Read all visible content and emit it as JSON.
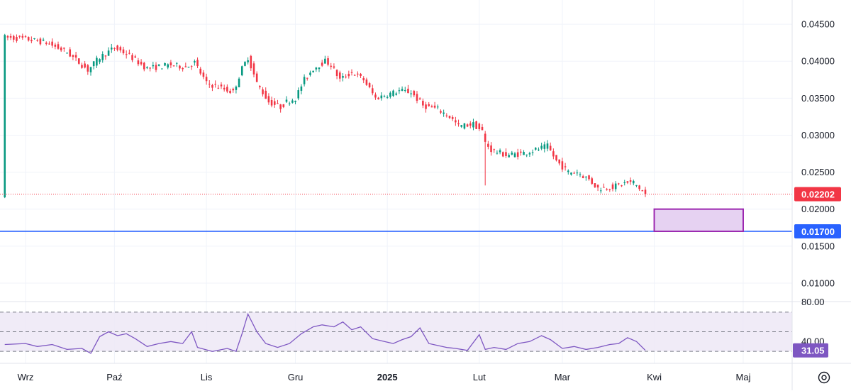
{
  "chart_data": [
    {
      "type": "candlestick",
      "title": "",
      "x_ticks": [
        {
          "label": "Wrz",
          "date": "2024-09-01"
        },
        {
          "label": "Paź",
          "date": "2024-10-01"
        },
        {
          "label": "Lis",
          "date": "2024-11-01"
        },
        {
          "label": "Gru",
          "date": "2024-12-01"
        },
        {
          "label": "2025",
          "date": "2025-01-01",
          "bold": true
        },
        {
          "label": "Lut",
          "date": "2025-02-01"
        },
        {
          "label": "Mar",
          "date": "2025-03-01"
        },
        {
          "label": "Kwi",
          "date": "2025-04-01"
        },
        {
          "label": "Maj",
          "date": "2025-05-01"
        }
      ],
      "y_ticks": [
        "0.04500",
        "0.04000",
        "0.03500",
        "0.03000",
        "0.02500",
        "0.02000",
        "0.01500",
        "0.01000"
      ],
      "ylim": [
        0.0075,
        0.0475
      ],
      "price_path": [
        [
          "2024-08-25",
          0.0432
        ],
        [
          "2024-09-01",
          0.043
        ],
        [
          "2024-09-08",
          0.0425
        ],
        [
          "2024-09-15",
          0.0412
        ],
        [
          "2024-09-22",
          0.0388
        ],
        [
          "2024-09-26",
          0.0405
        ],
        [
          "2024-10-01",
          0.0418
        ],
        [
          "2024-10-05",
          0.041
        ],
        [
          "2024-10-12",
          0.039
        ],
        [
          "2024-10-20",
          0.0395
        ],
        [
          "2024-10-25",
          0.0392
        ],
        [
          "2024-10-28",
          0.0398
        ],
        [
          "2024-11-01",
          0.037
        ],
        [
          "2024-11-05",
          0.0365
        ],
        [
          "2024-11-10",
          0.0358
        ],
        [
          "2024-11-13",
          0.039
        ],
        [
          "2024-11-15",
          0.0405
        ],
        [
          "2024-11-18",
          0.037
        ],
        [
          "2024-11-22",
          0.0345
        ],
        [
          "2024-11-26",
          0.0338
        ],
        [
          "2024-11-28",
          0.0345
        ],
        [
          "2024-12-01",
          0.035
        ],
        [
          "2024-12-04",
          0.0375
        ],
        [
          "2024-12-07",
          0.039
        ],
        [
          "2024-12-11",
          0.04
        ],
        [
          "2024-12-13",
          0.0395
        ],
        [
          "2024-12-16",
          0.0375
        ],
        [
          "2024-12-20",
          0.0385
        ],
        [
          "2024-12-24",
          0.0375
        ],
        [
          "2024-12-28",
          0.035
        ],
        [
          "2025-01-01",
          0.0355
        ],
        [
          "2025-01-05",
          0.036
        ],
        [
          "2025-01-09",
          0.0358
        ],
        [
          "2025-01-13",
          0.034
        ],
        [
          "2025-01-18",
          0.0335
        ],
        [
          "2025-01-22",
          0.0325
        ],
        [
          "2025-01-25",
          0.0312
        ],
        [
          "2025-01-30",
          0.0315
        ],
        [
          "2025-02-02",
          0.0305
        ],
        [
          "2025-02-03",
          0.029
        ],
        [
          "2025-02-05",
          0.028
        ],
        [
          "2025-02-10",
          0.0273
        ],
        [
          "2025-02-15",
          0.0275
        ],
        [
          "2025-02-20",
          0.028
        ],
        [
          "2025-02-24",
          0.0285
        ],
        [
          "2025-02-27",
          0.0265
        ],
        [
          "2025-03-03",
          0.025
        ],
        [
          "2025-03-06",
          0.025
        ],
        [
          "2025-03-10",
          0.024
        ],
        [
          "2025-03-13",
          0.0228
        ],
        [
          "2025-03-18",
          0.023
        ],
        [
          "2025-03-22",
          0.0235
        ],
        [
          "2025-03-25",
          0.0236
        ],
        [
          "2025-03-27",
          0.0228
        ],
        [
          "2025-03-29",
          0.022
        ]
      ],
      "dips": [
        {
          "date": "2025-02-03",
          "low": 0.0232
        }
      ],
      "lines": [
        {
          "name": "",
          "value": "0.02202",
          "style": "dotted",
          "color": "#f23645",
          "label_bg": "#f23645"
        },
        {
          "name": "",
          "value": "0.01700",
          "style": "solid",
          "color": "#2962ff",
          "label_bg": "#2962ff"
        }
      ],
      "rectangle": {
        "date_start": "2025-04-01",
        "date_end": "2025-05-01",
        "y_top": 0.02,
        "y_bottom": 0.017,
        "fill": "#e6d2f2",
        "stroke": "#9c27b0"
      },
      "colors": {
        "up": "#089981",
        "down": "#f23645",
        "grid": "#f0f3fa",
        "text": "#131722"
      }
    },
    {
      "type": "line",
      "title": "",
      "y_ticks": [
        "80.00",
        "40.00"
      ],
      "bands": [
        70,
        50,
        30
      ],
      "ylim": [
        20,
        80
      ],
      "last_value": "31.05",
      "line_color": "#7e57c2",
      "band_fill": "#ede7f6",
      "values": [
        [
          "2024-08-25",
          37
        ],
        [
          "2024-09-01",
          38
        ],
        [
          "2024-09-05",
          35
        ],
        [
          "2024-09-10",
          37
        ],
        [
          "2024-09-15",
          32
        ],
        [
          "2024-09-20",
          33
        ],
        [
          "2024-09-23",
          28
        ],
        [
          "2024-09-26",
          45
        ],
        [
          "2024-09-29",
          50
        ],
        [
          "2024-10-02",
          46
        ],
        [
          "2024-10-05",
          48
        ],
        [
          "2024-10-08",
          43
        ],
        [
          "2024-10-12",
          35
        ],
        [
          "2024-10-16",
          38
        ],
        [
          "2024-10-20",
          40
        ],
        [
          "2024-10-24",
          38
        ],
        [
          "2024-10-27",
          50
        ],
        [
          "2024-10-29",
          34
        ],
        [
          "2024-11-03",
          30
        ],
        [
          "2024-11-08",
          33
        ],
        [
          "2024-11-11",
          30
        ],
        [
          "2024-11-13",
          48
        ],
        [
          "2024-11-15",
          68
        ],
        [
          "2024-11-18",
          50
        ],
        [
          "2024-11-21",
          38
        ],
        [
          "2024-11-25",
          34
        ],
        [
          "2024-11-29",
          38
        ],
        [
          "2024-12-03",
          48
        ],
        [
          "2024-12-07",
          55
        ],
        [
          "2024-12-10",
          57
        ],
        [
          "2024-12-14",
          55
        ],
        [
          "2024-12-17",
          60
        ],
        [
          "2024-12-20",
          52
        ],
        [
          "2024-12-23",
          55
        ],
        [
          "2024-12-27",
          43
        ],
        [
          "2024-12-31",
          40
        ],
        [
          "2025-01-03",
          38
        ],
        [
          "2025-01-06",
          42
        ],
        [
          "2025-01-09",
          45
        ],
        [
          "2025-01-12",
          54
        ],
        [
          "2025-01-15",
          38
        ],
        [
          "2025-01-18",
          36
        ],
        [
          "2025-01-21",
          34
        ],
        [
          "2025-01-24",
          33
        ],
        [
          "2025-01-28",
          31
        ],
        [
          "2025-02-01",
          47
        ],
        [
          "2025-02-03",
          32
        ],
        [
          "2025-02-06",
          34
        ],
        [
          "2025-02-10",
          32
        ],
        [
          "2025-02-14",
          38
        ],
        [
          "2025-02-18",
          40
        ],
        [
          "2025-02-22",
          46
        ],
        [
          "2025-02-25",
          42
        ],
        [
          "2025-03-01",
          33
        ],
        [
          "2025-03-05",
          35
        ],
        [
          "2025-03-09",
          32
        ],
        [
          "2025-03-13",
          34
        ],
        [
          "2025-03-17",
          37
        ],
        [
          "2025-03-20",
          38
        ],
        [
          "2025-03-23",
          44
        ],
        [
          "2025-03-26",
          40
        ],
        [
          "2025-03-29",
          31.05
        ]
      ]
    }
  ]
}
